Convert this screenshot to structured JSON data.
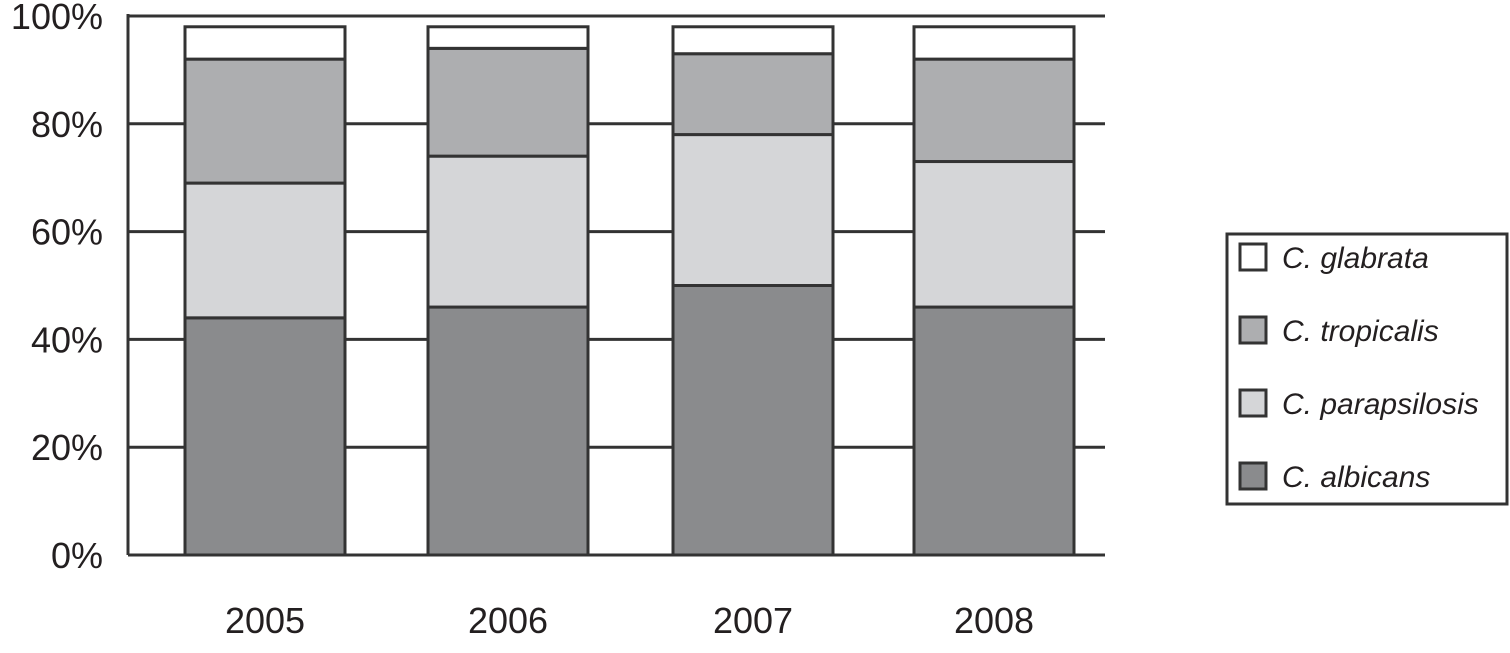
{
  "chart_data": {
    "type": "bar",
    "stacked": true,
    "categories": [
      "2005",
      "2006",
      "2007",
      "2008"
    ],
    "series": [
      {
        "name": "C. albicans",
        "values": [
          44,
          46,
          50,
          46
        ],
        "color": "#8a8b8d"
      },
      {
        "name": "C. parapsilosis",
        "values": [
          25,
          28,
          28,
          27
        ],
        "color": "#d5d6d8"
      },
      {
        "name": "C. tropicalis",
        "values": [
          23,
          20,
          15,
          19
        ],
        "color": "#adaeb0"
      },
      {
        "name": "C. glabrata",
        "values": [
          6,
          4,
          5,
          6
        ],
        "color": "#ffffff"
      }
    ],
    "yticks": [
      "0%",
      "20%",
      "40%",
      "60%",
      "80%",
      "100%"
    ],
    "ylim": [
      0,
      100
    ],
    "title": "",
    "xlabel": "",
    "ylabel": "",
    "grid": true,
    "legend_position": "right",
    "legend_order": [
      "C. glabrata",
      "C. tropicalis",
      "C. parapsilosis",
      "C. albicans"
    ]
  }
}
